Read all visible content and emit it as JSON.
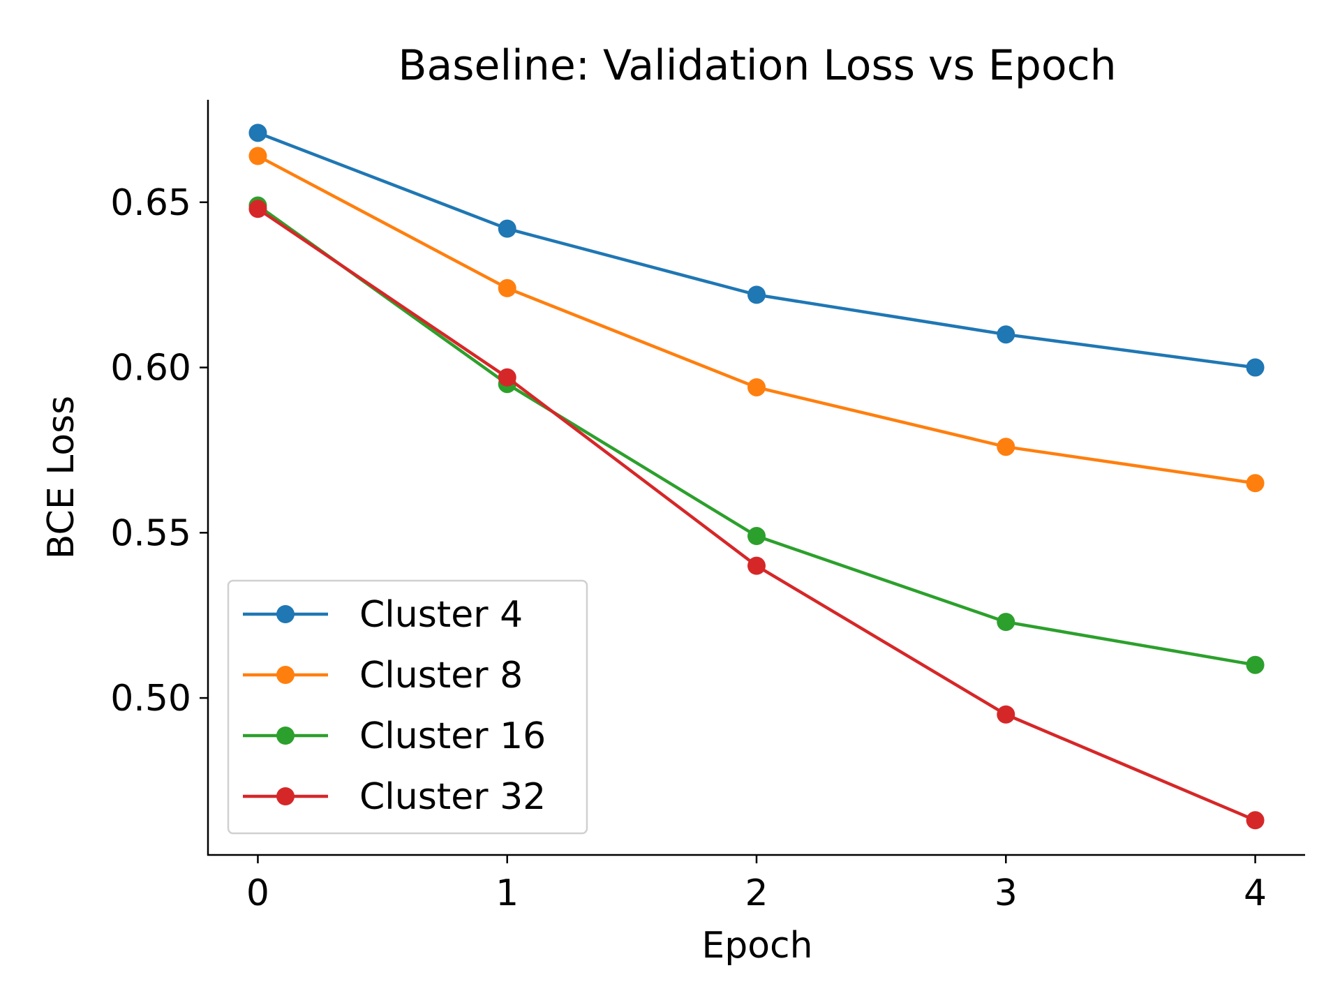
{
  "chart_data": {
    "type": "line",
    "title": "Baseline: Validation Loss vs Epoch",
    "xlabel": "Epoch",
    "ylabel": "BCE Loss",
    "x": [
      0,
      1,
      2,
      3,
      4
    ],
    "xticks": [
      "0",
      "1",
      "2",
      "3",
      "4"
    ],
    "xlim": [
      -0.2,
      4.2
    ],
    "yticks": [
      "0.50",
      "0.55",
      "0.60",
      "0.65"
    ],
    "ytick_values": [
      0.5,
      0.55,
      0.6,
      0.65
    ],
    "ylim": [
      0.4525,
      0.681
    ],
    "grid": false,
    "legend_position": "lower-left",
    "series": [
      {
        "name": "Cluster 4",
        "color": "#1f77b4",
        "values": [
          0.671,
          0.642,
          0.622,
          0.61,
          0.6
        ]
      },
      {
        "name": "Cluster 8",
        "color": "#ff7f0e",
        "values": [
          0.664,
          0.624,
          0.594,
          0.576,
          0.565
        ]
      },
      {
        "name": "Cluster 16",
        "color": "#2ca02c",
        "values": [
          0.649,
          0.595,
          0.549,
          0.523,
          0.51
        ]
      },
      {
        "name": "Cluster 32",
        "color": "#d62728",
        "values": [
          0.648,
          0.597,
          0.54,
          0.495,
          0.463
        ]
      }
    ]
  }
}
